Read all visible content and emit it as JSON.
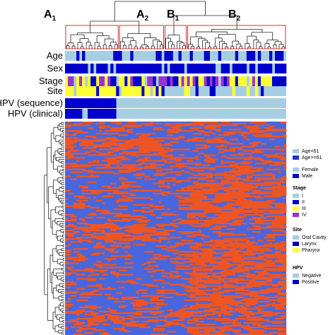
{
  "clusters": [
    {
      "main": "A",
      "sub": "1"
    },
    {
      "main": "A",
      "sub": "2"
    },
    {
      "main": "B",
      "sub": "1"
    },
    {
      "main": "B",
      "sub": "2"
    }
  ],
  "annotation_rows": [
    "Age",
    "Sex",
    "Stage",
    "Site",
    "HPV (sequence)",
    "HPV (clinical)"
  ],
  "legend": {
    "groups": [
      {
        "title": "",
        "items": [
          {
            "label": "Age<61",
            "color": "#a6cee3"
          },
          {
            "label": "Age>=61",
            "color": "#2233cc"
          }
        ]
      },
      {
        "title": "",
        "items": [
          {
            "label": "Female",
            "color": "#a6cee3"
          },
          {
            "label": "Male",
            "color": "#0000cc"
          }
        ]
      },
      {
        "title": "Stage",
        "items": [
          {
            "label": "I",
            "color": "#a6cee3"
          },
          {
            "label": "II",
            "color": "#0000cc"
          },
          {
            "label": "III",
            "color": "#ffff33"
          },
          {
            "label": "IV",
            "color": "#9933cc"
          }
        ]
      },
      {
        "title": "Site",
        "items": [
          {
            "label": "Oral Cavity",
            "color": "#a6cee3"
          },
          {
            "label": "Larynx",
            "color": "#0000aa"
          },
          {
            "label": "Pharynx",
            "color": "#ffff33"
          }
        ]
      },
      {
        "title": "HPV",
        "items": [
          {
            "label": "Negative",
            "color": "#a6cee3"
          },
          {
            "label": "Positive",
            "color": "#0000cc"
          }
        ]
      }
    ]
  },
  "chart_data": {
    "type": "heatmap",
    "colors": {
      "low": "#4a66dd",
      "high": "#ee5522",
      "annotation_light": "#a6cee3",
      "annotation_dark": "#0000cc",
      "stage_III": "#ffff33",
      "stage_IV": "#9933cc",
      "cluster_box": "#cc3333"
    },
    "column_clusters": [
      "A1",
      "A2",
      "B1",
      "B2"
    ],
    "annotation_tracks": [
      "Age",
      "Sex",
      "Stage",
      "Site",
      "HPV (sequence)",
      "HPV (clinical)"
    ],
    "hpv_positive_columns_fraction": 0.23
  }
}
